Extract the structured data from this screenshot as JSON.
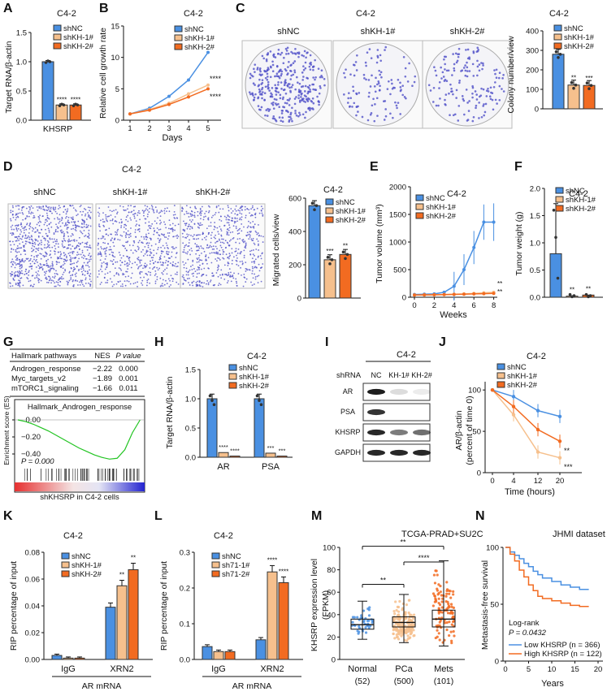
{
  "colors": {
    "shNC": "#4a90e2",
    "shKH1": "#f6c08d",
    "shKH2": "#f26b21",
    "plate": "#5050c8"
  },
  "panels": {
    "A": "A",
    "B": "B",
    "C": "C",
    "D": "D",
    "E": "E",
    "F": "F",
    "G": "G",
    "H": "H",
    "I": "I",
    "J": "J",
    "K": "K",
    "L": "L",
    "M": "M",
    "N": "N"
  },
  "chart_data": [
    {
      "id": "A",
      "type": "bar",
      "title": "C4-2",
      "ylabel": "Target RNA/β-actin",
      "categories": [
        "KHSRP"
      ],
      "ylim": [
        0,
        1.5
      ],
      "legend": [
        "shNC",
        "shKH-1#",
        "shKH-2#"
      ],
      "series": [
        {
          "name": "shNC",
          "values": [
            1.0
          ]
        },
        {
          "name": "shKH-1#",
          "values": [
            0.26
          ]
        },
        {
          "name": "shKH-2#",
          "values": [
            0.26
          ]
        }
      ],
      "significance": [
        "",
        "****",
        "****"
      ]
    },
    {
      "id": "B",
      "type": "line",
      "title": "C4-2",
      "ylabel": "Relative cell growth rate",
      "xlabel": "Days",
      "x": [
        1,
        2,
        3,
        4,
        5
      ],
      "ylim": [
        0,
        15
      ],
      "yticks": [
        0,
        5,
        10,
        15
      ],
      "xticks": [
        "1",
        "2",
        "3",
        "4",
        "5"
      ],
      "series": [
        {
          "name": "shNC",
          "values": [
            1,
            1.9,
            3.8,
            6.4,
            10.8
          ]
        },
        {
          "name": "shKH-1#",
          "values": [
            1,
            1.7,
            2.7,
            4.2,
            5.6
          ]
        },
        {
          "name": "shKH-2#",
          "values": [
            1,
            1.6,
            2.5,
            3.7,
            5.0
          ]
        }
      ],
      "annotations": [
        "****",
        "****"
      ]
    },
    {
      "id": "C-img",
      "type": "image",
      "title": "C4-2",
      "labels": [
        "shNC",
        "shKH-1#",
        "shKH-2#"
      ]
    },
    {
      "id": "C",
      "type": "bar",
      "title": "C4-2",
      "ylabel": "Colony number/view",
      "ylim": [
        0,
        400
      ],
      "yticks": [
        0,
        100,
        200,
        300,
        400
      ],
      "legend": [
        "shNC",
        "shKH-1#",
        "shKH-2#"
      ],
      "series": [
        {
          "name": "shNC",
          "values": [
            280
          ]
        },
        {
          "name": "shKH-1#",
          "values": [
            122
          ]
        },
        {
          "name": "shKH-2#",
          "values": [
            120
          ]
        }
      ],
      "significance": [
        "",
        "**",
        "***"
      ]
    },
    {
      "id": "D-img",
      "type": "image",
      "title": "C4-2",
      "labels": [
        "shNC",
        "shKH-1#",
        "shKH-2#"
      ]
    },
    {
      "id": "D",
      "type": "bar",
      "title": "C4-2",
      "ylabel": "Migrated cells/view",
      "ylim": [
        0,
        600
      ],
      "yticks": [
        0,
        200,
        400,
        600
      ],
      "legend": [
        "shNC",
        "shKH-1#",
        "shKH-2#"
      ],
      "series": [
        {
          "name": "shNC",
          "values": [
            555
          ]
        },
        {
          "name": "shKH-1#",
          "values": [
            230
          ]
        },
        {
          "name": "shKH-2#",
          "values": [
            262
          ]
        }
      ],
      "significance": [
        "",
        "***",
        "**"
      ]
    },
    {
      "id": "E",
      "type": "line",
      "title": "C4-2",
      "ylabel": "Tumor volume (mm³)",
      "xlabel": "Weeks",
      "x": [
        0,
        1,
        2,
        3,
        4,
        5,
        6,
        7,
        8
      ],
      "ylim": [
        0,
        2000
      ],
      "yticks": [
        0,
        500,
        1000,
        1500,
        2000
      ],
      "xticks": [
        "0",
        "2",
        "4",
        "6",
        "8"
      ],
      "series": [
        {
          "name": "shNC",
          "values": [
            50,
            55,
            60,
            90,
            200,
            500,
            900,
            1360,
            1360
          ]
        },
        {
          "name": "shKH-1#",
          "values": [
            40,
            42,
            45,
            50,
            55,
            60,
            70,
            80,
            90
          ]
        },
        {
          "name": "shKH-2#",
          "values": [
            40,
            42,
            44,
            48,
            52,
            56,
            60,
            65,
            70
          ]
        }
      ],
      "annotations": [
        "**",
        "**"
      ]
    },
    {
      "id": "F",
      "type": "bar",
      "title": "C4-2",
      "ylabel": "Tumor weight (g)",
      "ylim": [
        0,
        2.0
      ],
      "yticks": [
        "0.0",
        "0.5",
        "1.0",
        "1.5",
        "2.0"
      ],
      "legend": [
        "shNC",
        "shKH-1#",
        "shKH-2#"
      ],
      "series": [
        {
          "name": "shNC",
          "values": [
            0.8
          ]
        },
        {
          "name": "shKH-1#",
          "values": [
            0.02
          ]
        },
        {
          "name": "shKH-2#",
          "values": [
            0.04
          ]
        }
      ],
      "significance": [
        "",
        "**",
        "**"
      ]
    },
    {
      "id": "G",
      "type": "table",
      "headers": [
        "Hallmark pathways",
        "NES",
        "P value"
      ],
      "rows": [
        [
          "Androgen_response",
          "−2.22",
          "0.000"
        ],
        [
          "Myc_targets_v2",
          "−1.89",
          "0.001"
        ],
        [
          "mTORC1_signaling",
          "−1.66",
          "0.011"
        ]
      ],
      "gsea_title": "Hallmark_Androgen_response",
      "ylabel": "Enrichment score (ES)",
      "yticks": [
        "0.00",
        "−0.20",
        "−0.40"
      ],
      "pvalue": "P = 0.000",
      "xlabel": "shKHSRP in C4-2 cells"
    },
    {
      "id": "H",
      "type": "bar",
      "title": "C4-2",
      "ylabel": "Target RNA/β-actin",
      "categories": [
        "AR",
        "PSA"
      ],
      "ylim": [
        0,
        1.5
      ],
      "yticks": [
        "0.0",
        "0.5",
        "1.0",
        "1.5"
      ],
      "legend": [
        "shNC",
        "shKH-1#",
        "shKH-2#"
      ],
      "series": [
        {
          "name": "shNC",
          "values": [
            1.0,
            1.0
          ]
        },
        {
          "name": "shKH-1#",
          "values": [
            0.08,
            0.07
          ]
        },
        {
          "name": "shKH-2#",
          "values": [
            0.02,
            0.02
          ]
        }
      ],
      "significance": [
        [
          "",
          "****",
          "****"
        ],
        [
          "",
          "***",
          "***"
        ]
      ]
    },
    {
      "id": "I",
      "type": "blot",
      "title": "C4-2",
      "shrna_label": "shRNA",
      "lanes": [
        "NC",
        "KH-1#",
        "KH-2#"
      ],
      "rows": [
        "AR",
        "PSA",
        "KHSRP",
        "GAPDH"
      ]
    },
    {
      "id": "J",
      "type": "line",
      "title": "C4-2",
      "ylabel": "AR/β-actin (percent of time 0)",
      "xlabel": "Time (hours)",
      "x": [
        0,
        4,
        12,
        20
      ],
      "ylim": [
        0,
        110
      ],
      "yticks": [
        0,
        50,
        100
      ],
      "xticks": [
        "0",
        "4",
        "12",
        "20"
      ],
      "series": [
        {
          "name": "shNC",
          "values": [
            100,
            92,
            75,
            68
          ]
        },
        {
          "name": "shKH-1#",
          "values": [
            100,
            70,
            25,
            18
          ]
        },
        {
          "name": "shKH-2#",
          "values": [
            100,
            80,
            52,
            38
          ]
        }
      ],
      "annotations": [
        "**",
        "***"
      ]
    },
    {
      "id": "K",
      "type": "bar",
      "title": "C4-2",
      "ylabel": "RIP percentage of input",
      "xlabel": "AR mRNA",
      "categories": [
        "IgG",
        "XRN2"
      ],
      "ylim": [
        0,
        0.08
      ],
      "yticks": [
        "0.00",
        "0.02",
        "0.04",
        "0.06",
        "0.08"
      ],
      "legend": [
        "shNC",
        "shKH-1#",
        "shKH-2#"
      ],
      "series": [
        {
          "name": "shNC",
          "values": [
            0.003,
            0.039
          ]
        },
        {
          "name": "shKH-1#",
          "values": [
            0.001,
            0.055
          ]
        },
        {
          "name": "shKH-2#",
          "values": [
            0.001,
            0.067
          ]
        }
      ],
      "significance": [
        [
          "",
          "",
          ""
        ],
        [
          "",
          "**",
          "**"
        ]
      ]
    },
    {
      "id": "L",
      "type": "bar",
      "title": "C4-2",
      "ylabel": "RIP percentage of input",
      "xlabel": "AR mRNA",
      "categories": [
        "IgG",
        "XRN2"
      ],
      "ylim": [
        0,
        0.3
      ],
      "yticks": [
        "0.0",
        "0.1",
        "0.2",
        "0.3"
      ],
      "legend": [
        "shNC",
        "sh71-1#",
        "sh71-2#"
      ],
      "series": [
        {
          "name": "shNC",
          "values": [
            0.036,
            0.055
          ]
        },
        {
          "name": "sh71-1#",
          "values": [
            0.022,
            0.245
          ]
        },
        {
          "name": "sh71-2#",
          "values": [
            0.022,
            0.215
          ]
        }
      ],
      "significance": [
        [
          "",
          "",
          ""
        ],
        [
          "",
          "****",
          "****"
        ]
      ]
    },
    {
      "id": "M",
      "type": "box",
      "title": "TCGA-PRAD+SU2C",
      "ylabel": "KHSRP expression level (FPKM)",
      "categories": [
        "Normal",
        "PCa",
        "Mets"
      ],
      "counts": [
        "(52)",
        "(500)",
        "(101)"
      ],
      "ylim": [
        0,
        100
      ],
      "yticks": [
        0,
        20,
        40,
        60,
        80,
        100
      ],
      "boxes": [
        {
          "min": 18,
          "q1": 27,
          "median": 31,
          "q3": 36,
          "max": 52
        },
        {
          "min": 15,
          "q1": 29,
          "median": 33,
          "q3": 38,
          "max": 58
        },
        {
          "min": 12,
          "q1": 29,
          "median": 36,
          "q3": 44,
          "max": 88
        }
      ],
      "comparisons": [
        "**",
        "****",
        "**"
      ]
    },
    {
      "id": "N",
      "type": "line",
      "title": "JHMI dataset",
      "ylabel": "Metastasis-free survival",
      "xlabel": "Years",
      "ylim": [
        0,
        100
      ],
      "yticks": [
        0,
        50,
        100
      ],
      "xticks": [
        "0",
        "5",
        "10",
        "15",
        "20"
      ],
      "series": [
        {
          "name": "Low KHSRP (n = 366)",
          "x": [
            0,
            1,
            2,
            3,
            4,
            5,
            6,
            7,
            8,
            10,
            12,
            14,
            16,
            18
          ],
          "values": [
            100,
            96,
            93,
            90,
            86,
            83,
            79,
            76,
            73,
            70,
            67,
            65,
            63,
            63
          ]
        },
        {
          "name": "High KHSRP (n = 122)",
          "x": [
            0,
            1,
            2,
            3,
            4,
            5,
            6,
            7,
            8,
            10,
            12,
            14,
            16,
            18
          ],
          "values": [
            100,
            94,
            88,
            80,
            74,
            67,
            62,
            57,
            55,
            53,
            51,
            49,
            48,
            48
          ]
        }
      ],
      "logrank_title": "Log-rank",
      "logrank_p": "P = 0.0432"
    }
  ]
}
